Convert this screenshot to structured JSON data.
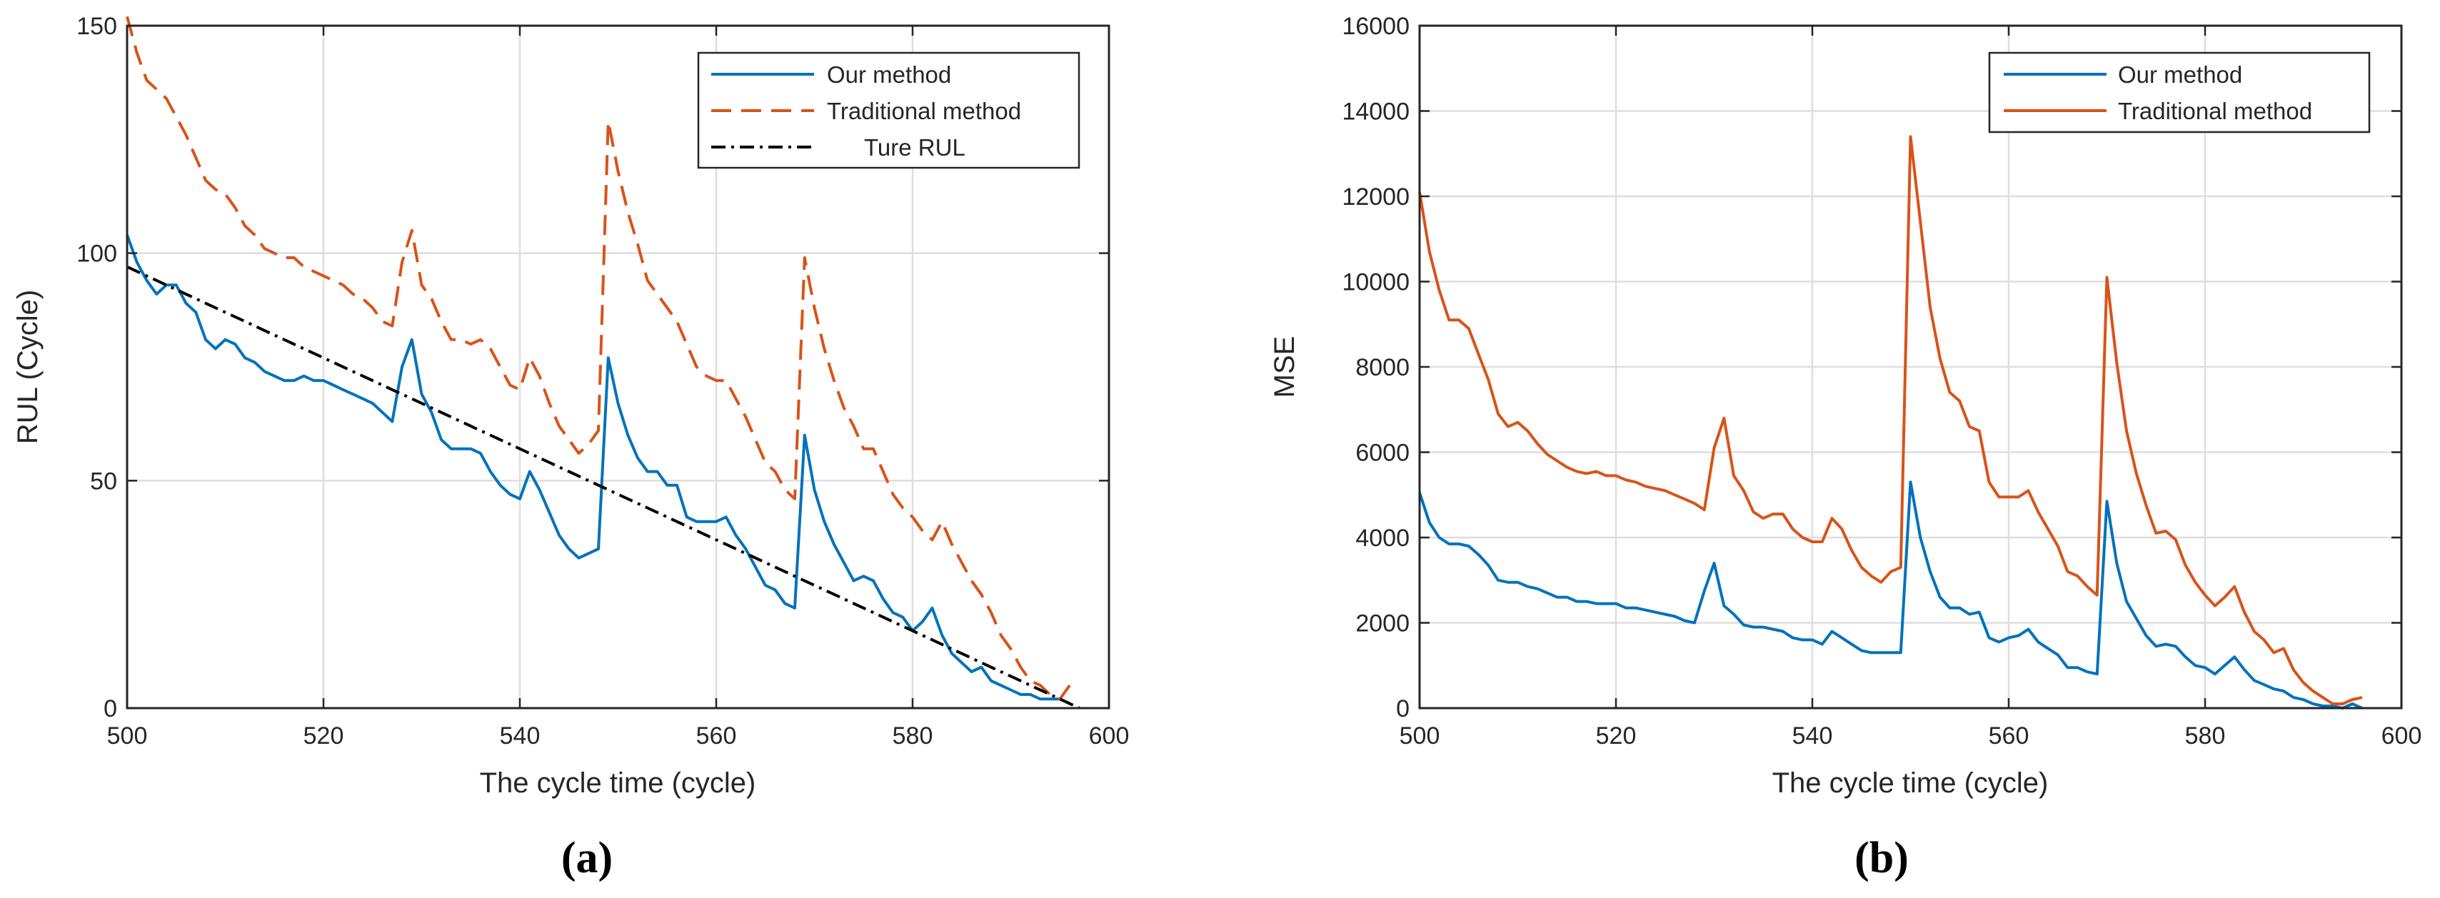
{
  "chart_data": [
    {
      "type": "line",
      "panel_label": "(a)",
      "title": "",
      "xlabel": "The cycle time (cycle)",
      "ylabel": "RUL (Cycle)",
      "xlim": [
        500,
        600
      ],
      "ylim": [
        0,
        150
      ],
      "xticks": [
        500,
        520,
        540,
        560,
        580,
        600
      ],
      "yticks": [
        0,
        50,
        100,
        150
      ],
      "grid": true,
      "legend_position": "top-right",
      "series": [
        {
          "name": "Our method",
          "color": "#0072BD",
          "style": "solid",
          "x": [
            500,
            501,
            502,
            503,
            504,
            505,
            506,
            507,
            508,
            509,
            510,
            511,
            512,
            513,
            514,
            515,
            516,
            517,
            518,
            519,
            520,
            521,
            522,
            523,
            524,
            525,
            526,
            527,
            528,
            529,
            530,
            531,
            532,
            533,
            534,
            535,
            536,
            537,
            538,
            539,
            540,
            541,
            542,
            543,
            544,
            545,
            546,
            547,
            548,
            549,
            550,
            551,
            552,
            553,
            554,
            555,
            556,
            557,
            558,
            559,
            560,
            561,
            562,
            563,
            564,
            565,
            566,
            567,
            568,
            569,
            570,
            571,
            572,
            573,
            574,
            575,
            576,
            577,
            578,
            579,
            580,
            581,
            582,
            583,
            584,
            585,
            586,
            587,
            588,
            589,
            590,
            591,
            592,
            593,
            594,
            595,
            596
          ],
          "y": [
            104,
            98,
            94,
            91,
            93,
            93,
            89,
            87,
            81,
            79,
            81,
            80,
            77,
            76,
            74,
            73,
            72,
            72,
            73,
            72,
            72,
            71,
            70,
            69,
            68,
            67,
            65,
            63,
            75,
            81,
            69,
            65,
            59,
            57,
            57,
            57,
            56,
            52,
            49,
            47,
            46,
            52,
            48,
            43,
            38,
            35,
            33,
            34,
            35,
            77,
            67,
            60,
            55,
            52,
            52,
            49,
            49,
            42,
            41,
            41,
            41,
            42,
            38,
            35,
            31,
            27,
            26,
            23,
            22,
            60,
            48,
            41,
            36,
            32,
            28,
            29,
            28,
            24,
            21,
            20,
            17,
            19,
            22,
            16,
            12,
            10,
            8,
            9,
            6,
            5,
            4,
            3,
            3,
            2,
            2,
            2,
            1
          ]
        },
        {
          "name": "Traditional method",
          "color": "#D95319",
          "style": "dashed",
          "x": [
            500,
            501,
            502,
            503,
            504,
            505,
            506,
            507,
            508,
            509,
            510,
            511,
            512,
            513,
            514,
            515,
            516,
            517,
            518,
            519,
            520,
            521,
            522,
            523,
            524,
            525,
            526,
            527,
            528,
            529,
            530,
            531,
            532,
            533,
            534,
            535,
            536,
            537,
            538,
            539,
            540,
            541,
            542,
            543,
            544,
            545,
            546,
            547,
            548,
            549,
            550,
            551,
            552,
            553,
            554,
            555,
            556,
            557,
            558,
            559,
            560,
            561,
            562,
            563,
            564,
            565,
            566,
            567,
            568,
            569,
            570,
            571,
            572,
            573,
            574,
            575,
            576,
            577,
            578,
            579,
            580,
            581,
            582,
            583,
            584,
            585,
            586,
            587,
            588,
            589,
            590,
            591,
            592,
            593,
            594,
            595,
            596
          ],
          "y": [
            152,
            144,
            138,
            136,
            134,
            130,
            126,
            121,
            116,
            114,
            113,
            110,
            106,
            104,
            101,
            100,
            99,
            99,
            97,
            96,
            95,
            94,
            93,
            91,
            90,
            88,
            85,
            84,
            98,
            105,
            93,
            90,
            85,
            81,
            81,
            80,
            81,
            79,
            75,
            71,
            70,
            77,
            73,
            67,
            62,
            59,
            56,
            58,
            61,
            129,
            118,
            109,
            102,
            94,
            91,
            88,
            85,
            80,
            75,
            73,
            72,
            72,
            68,
            64,
            59,
            54,
            52,
            48,
            46,
            99,
            88,
            79,
            72,
            66,
            62,
            57,
            57,
            52,
            47,
            44,
            42,
            39,
            37,
            41,
            36,
            32,
            28,
            25,
            21,
            16,
            13,
            9,
            6,
            5,
            3,
            2,
            5
          ]
        },
        {
          "name": "Ture RUL",
          "color": "#000000",
          "style": "dashdot",
          "x": [
            500,
            597
          ],
          "y": [
            97,
            0
          ]
        }
      ]
    },
    {
      "type": "line",
      "panel_label": "(b)",
      "title": "",
      "xlabel": "The cycle time (cycle)",
      "ylabel": "MSE",
      "xlim": [
        500,
        600
      ],
      "ylim": [
        0,
        16000
      ],
      "xticks": [
        500,
        520,
        540,
        560,
        580,
        600
      ],
      "yticks": [
        0,
        2000,
        4000,
        6000,
        8000,
        10000,
        12000,
        14000,
        16000
      ],
      "grid": true,
      "legend_position": "top-right",
      "series": [
        {
          "name": "Our method",
          "color": "#0072BD",
          "style": "solid",
          "x": [
            500,
            501,
            502,
            503,
            504,
            505,
            506,
            507,
            508,
            509,
            510,
            511,
            512,
            513,
            514,
            515,
            516,
            517,
            518,
            519,
            520,
            521,
            522,
            523,
            524,
            525,
            526,
            527,
            528,
            529,
            530,
            531,
            532,
            533,
            534,
            535,
            536,
            537,
            538,
            539,
            540,
            541,
            542,
            543,
            544,
            545,
            546,
            547,
            548,
            549,
            550,
            551,
            552,
            553,
            554,
            555,
            556,
            557,
            558,
            559,
            560,
            561,
            562,
            563,
            564,
            565,
            566,
            567,
            568,
            569,
            570,
            571,
            572,
            573,
            574,
            575,
            576,
            577,
            578,
            579,
            580,
            581,
            582,
            583,
            584,
            585,
            586,
            587,
            588,
            589,
            590,
            591,
            592,
            593,
            594,
            595,
            596
          ],
          "y": [
            5050,
            4350,
            4000,
            3850,
            3850,
            3800,
            3600,
            3350,
            3000,
            2950,
            2950,
            2850,
            2800,
            2700,
            2600,
            2600,
            2500,
            2500,
            2450,
            2450,
            2450,
            2350,
            2350,
            2300,
            2250,
            2200,
            2150,
            2050,
            2000,
            2750,
            3400,
            2400,
            2200,
            1950,
            1900,
            1900,
            1850,
            1800,
            1650,
            1600,
            1600,
            1500,
            1800,
            1650,
            1500,
            1350,
            1300,
            1300,
            1300,
            1300,
            5300,
            4000,
            3200,
            2600,
            2350,
            2350,
            2200,
            2250,
            1650,
            1550,
            1650,
            1700,
            1850,
            1550,
            1400,
            1250,
            950,
            950,
            850,
            800,
            4850,
            3400,
            2500,
            2100,
            1700,
            1450,
            1500,
            1450,
            1200,
            1000,
            950,
            800,
            1000,
            1200,
            900,
            650,
            550,
            450,
            400,
            250,
            200,
            100,
            50,
            50,
            0,
            100,
            0
          ]
        },
        {
          "name": "Traditional method",
          "color": "#D95319",
          "style": "solid",
          "x": [
            500,
            501,
            502,
            503,
            504,
            505,
            506,
            507,
            508,
            509,
            510,
            511,
            512,
            513,
            514,
            515,
            516,
            517,
            518,
            519,
            520,
            521,
            522,
            523,
            524,
            525,
            526,
            527,
            528,
            529,
            530,
            531,
            532,
            533,
            534,
            535,
            536,
            537,
            538,
            539,
            540,
            541,
            542,
            543,
            544,
            545,
            546,
            547,
            548,
            549,
            550,
            551,
            552,
            553,
            554,
            555,
            556,
            557,
            558,
            559,
            560,
            561,
            562,
            563,
            564,
            565,
            566,
            567,
            568,
            569,
            570,
            571,
            572,
            573,
            574,
            575,
            576,
            577,
            578,
            579,
            580,
            581,
            582,
            583,
            584,
            585,
            586,
            587,
            588,
            589,
            590,
            591,
            592,
            593,
            594,
            595,
            596
          ],
          "y": [
            12100,
            10700,
            9800,
            9100,
            9100,
            8900,
            8300,
            7700,
            6900,
            6600,
            6700,
            6500,
            6200,
            5950,
            5800,
            5650,
            5550,
            5500,
            5550,
            5450,
            5450,
            5350,
            5300,
            5200,
            5150,
            5100,
            5000,
            4900,
            4800,
            4650,
            6100,
            6800,
            5450,
            5100,
            4600,
            4450,
            4550,
            4550,
            4200,
            4000,
            3900,
            3900,
            4450,
            4200,
            3700,
            3300,
            3100,
            2950,
            3200,
            3300,
            13400,
            11400,
            9400,
            8200,
            7400,
            7200,
            6600,
            6500,
            5300,
            4950,
            4950,
            4950,
            5100,
            4600,
            4200,
            3800,
            3200,
            3100,
            2850,
            2650,
            10100,
            8100,
            6500,
            5500,
            4750,
            4100,
            4150,
            3950,
            3350,
            2950,
            2650,
            2400,
            2600,
            2850,
            2250,
            1800,
            1600,
            1300,
            1400,
            900,
            600,
            400,
            250,
            100,
            100,
            200,
            250
          ]
        }
      ]
    }
  ]
}
